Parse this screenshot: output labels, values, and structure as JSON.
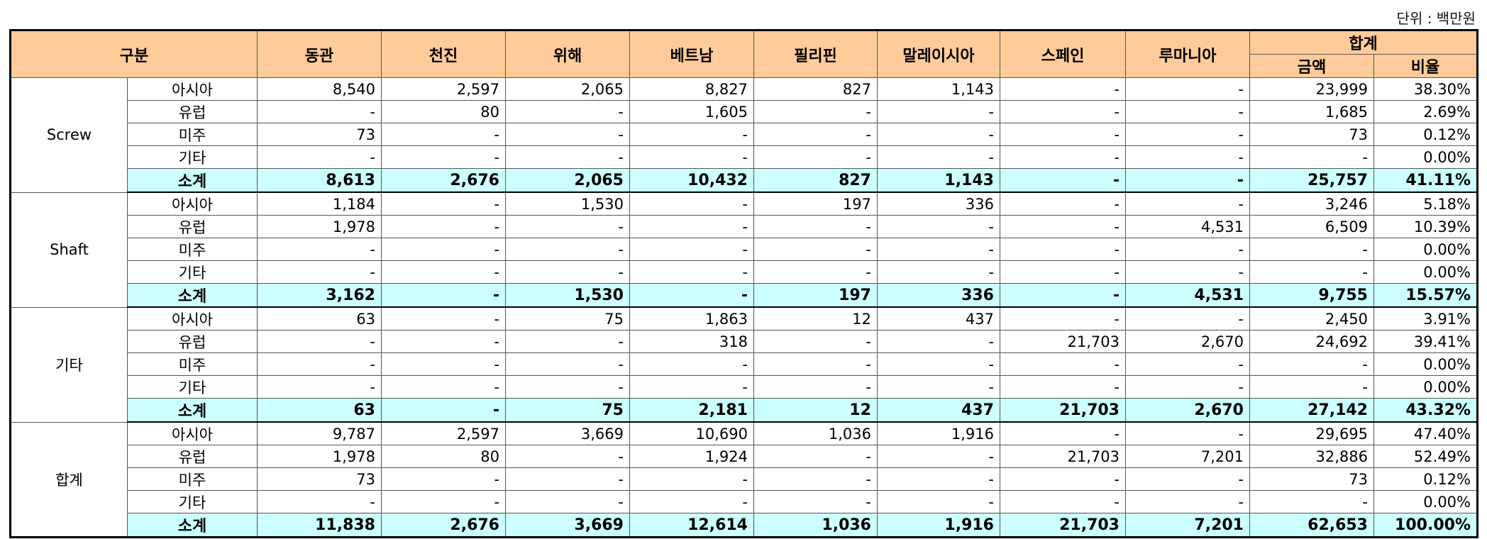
{
  "unit_label": "단위 : 백만원",
  "header": {
    "category": "구분",
    "columns": [
      "동관",
      "천진",
      "위해",
      "베트남",
      "필리핀",
      "말레이시아",
      "스페인",
      "루마니아"
    ],
    "total_group": "합계",
    "total_amount": "금액",
    "total_ratio": "비율"
  },
  "colors": {
    "header_bg": "#FFCC99",
    "subtotal_bg": "#CCFFFF"
  },
  "groups": [
    {
      "name": "Screw",
      "rows": [
        {
          "region": "아시아",
          "values": [
            "8,540",
            "2,597",
            "2,065",
            "8,827",
            "827",
            "1,143",
            "-",
            "-"
          ],
          "amount": "23,999",
          "ratio": "38.30%"
        },
        {
          "region": "유럽",
          "values": [
            "-",
            "80",
            "-",
            "1,605",
            "-",
            "-",
            "-",
            "-"
          ],
          "amount": "1,685",
          "ratio": "2.69%"
        },
        {
          "region": "미주",
          "values": [
            "73",
            "-",
            "-",
            "-",
            "-",
            "-",
            "-",
            "-"
          ],
          "amount": "73",
          "ratio": "0.12%"
        },
        {
          "region": "기타",
          "values": [
            "-",
            "-",
            "-",
            "-",
            "-",
            "-",
            "-",
            "-"
          ],
          "amount": "-",
          "ratio": "0.00%"
        },
        {
          "region": "소계",
          "values": [
            "8,613",
            "2,676",
            "2,065",
            "10,432",
            "827",
            "1,143",
            "-",
            "-"
          ],
          "amount": "25,757",
          "ratio": "41.11%"
        }
      ]
    },
    {
      "name": "Shaft",
      "rows": [
        {
          "region": "아시아",
          "values": [
            "1,184",
            "-",
            "1,530",
            "-",
            "197",
            "336",
            "-",
            "-"
          ],
          "amount": "3,246",
          "ratio": "5.18%"
        },
        {
          "region": "유럽",
          "values": [
            "1,978",
            "-",
            "-",
            "-",
            "-",
            "-",
            "-",
            "4,531"
          ],
          "amount": "6,509",
          "ratio": "10.39%"
        },
        {
          "region": "미주",
          "values": [
            "-",
            "-",
            "-",
            "-",
            "-",
            "-",
            "-",
            "-"
          ],
          "amount": "-",
          "ratio": "0.00%"
        },
        {
          "region": "기타",
          "values": [
            "-",
            "-",
            "-",
            "-",
            "-",
            "-",
            "-",
            "-"
          ],
          "amount": "-",
          "ratio": "0.00%"
        },
        {
          "region": "소계",
          "values": [
            "3,162",
            "-",
            "1,530",
            "-",
            "197",
            "336",
            "-",
            "4,531"
          ],
          "amount": "9,755",
          "ratio": "15.57%"
        }
      ]
    },
    {
      "name": "기타",
      "rows": [
        {
          "region": "아시아",
          "values": [
            "63",
            "-",
            "75",
            "1,863",
            "12",
            "437",
            "-",
            "-"
          ],
          "amount": "2,450",
          "ratio": "3.91%"
        },
        {
          "region": "유럽",
          "values": [
            "-",
            "-",
            "-",
            "318",
            "-",
            "-",
            "21,703",
            "2,670"
          ],
          "amount": "24,692",
          "ratio": "39.41%"
        },
        {
          "region": "미주",
          "values": [
            "-",
            "-",
            "-",
            "-",
            "-",
            "-",
            "-",
            "-"
          ],
          "amount": "-",
          "ratio": "0.00%"
        },
        {
          "region": "기타",
          "values": [
            "-",
            "-",
            "-",
            "-",
            "-",
            "-",
            "-",
            "-"
          ],
          "amount": "-",
          "ratio": "0.00%"
        },
        {
          "region": "소계",
          "values": [
            "63",
            "-",
            "75",
            "2,181",
            "12",
            "437",
            "21,703",
            "2,670"
          ],
          "amount": "27,142",
          "ratio": "43.32%"
        }
      ]
    },
    {
      "name": "합계",
      "rows": [
        {
          "region": "아시아",
          "values": [
            "9,787",
            "2,597",
            "3,669",
            "10,690",
            "1,036",
            "1,916",
            "-",
            "-"
          ],
          "amount": "29,695",
          "ratio": "47.40%"
        },
        {
          "region": "유럽",
          "values": [
            "1,978",
            "80",
            "-",
            "1,924",
            "-",
            "-",
            "21,703",
            "7,201"
          ],
          "amount": "32,886",
          "ratio": "52.49%"
        },
        {
          "region": "미주",
          "values": [
            "73",
            "-",
            "-",
            "-",
            "-",
            "-",
            "-",
            "-"
          ],
          "amount": "73",
          "ratio": "0.12%"
        },
        {
          "region": "기타",
          "values": [
            "-",
            "-",
            "-",
            "-",
            "-",
            "-",
            "-",
            "-"
          ],
          "amount": "-",
          "ratio": "0.00%"
        },
        {
          "region": "소계",
          "values": [
            "11,838",
            "2,676",
            "3,669",
            "12,614",
            "1,036",
            "1,916",
            "21,703",
            "7,201"
          ],
          "amount": "62,653",
          "ratio": "100.00%"
        }
      ]
    }
  ]
}
